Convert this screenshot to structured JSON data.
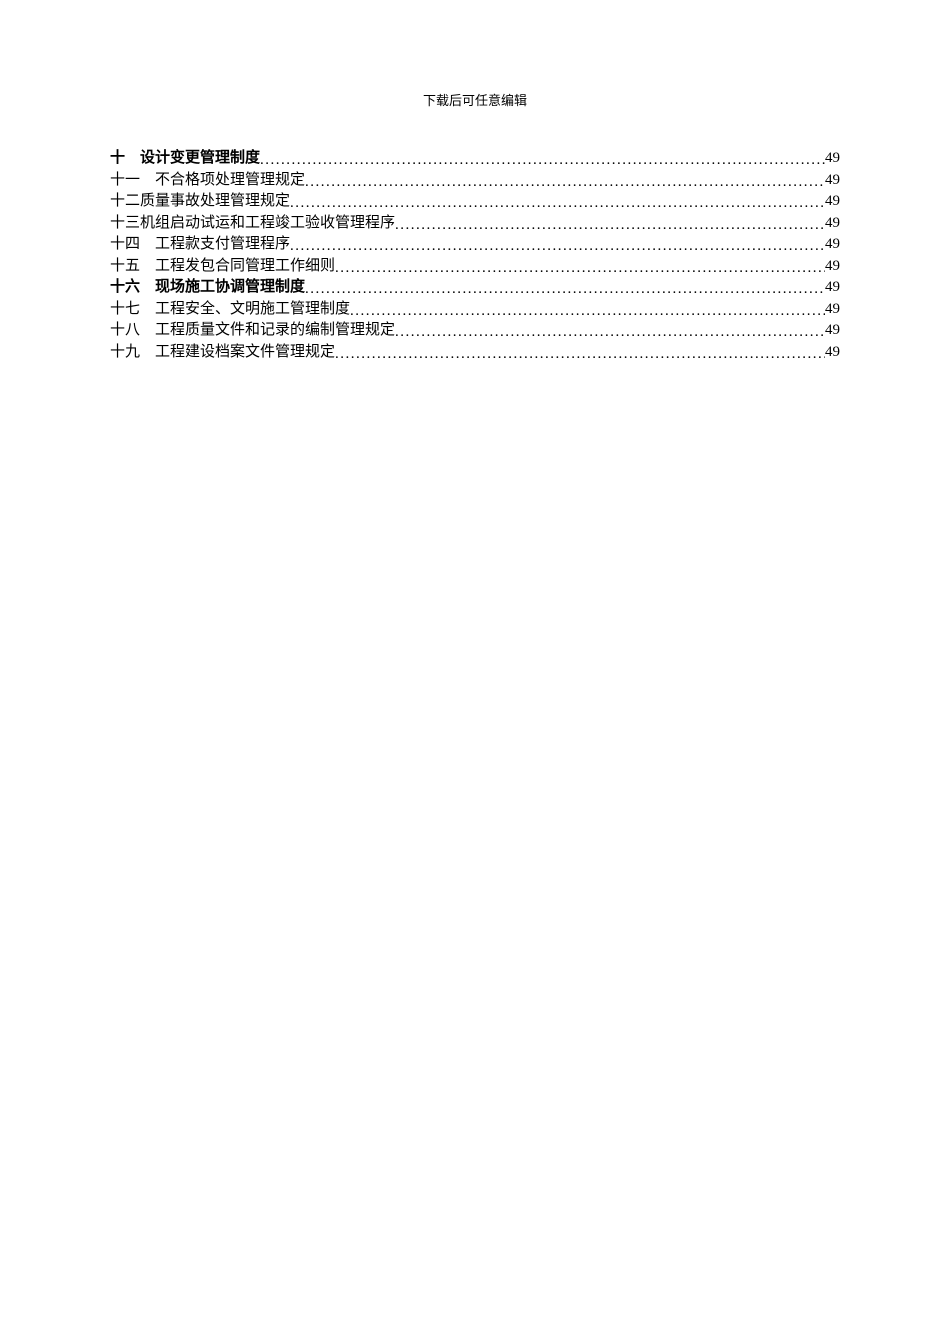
{
  "header": "下载后可任意编辑",
  "toc": {
    "entries": [
      {
        "num": "十　",
        "title": "设计变更管理制度",
        "page": "49",
        "bold": true
      },
      {
        "num": "十一　",
        "title": "不合格项处理管理规定",
        "page": "49",
        "bold": false
      },
      {
        "num": "十二 ",
        "title": "质量事故处理管理规定",
        "page": "49",
        "bold": false
      },
      {
        "num": "十三 ",
        "title": "机组启动试运和工程竣工验收管理程序",
        "page": "49",
        "bold": false
      },
      {
        "num": "十四　",
        "title": "工程款支付管理程序",
        "page": "49",
        "bold": false
      },
      {
        "num": "十五　",
        "title": "工程发包合同管理工作细则",
        "page": "49",
        "bold": false
      },
      {
        "num": "十六　",
        "title": "现场施工协调管理制度",
        "page": "49",
        "bold": true
      },
      {
        "num": "十七　",
        "title": "工程安全、文明施工管理制度",
        "page": "49",
        "bold": false
      },
      {
        "num": "十八　",
        "title": "工程质量文件和记录的编制管理规定",
        "page": "49",
        "bold": false
      },
      {
        "num": "十九　",
        "title": "工程建设档案文件管理规定",
        "page": "49",
        "bold": false
      }
    ]
  }
}
